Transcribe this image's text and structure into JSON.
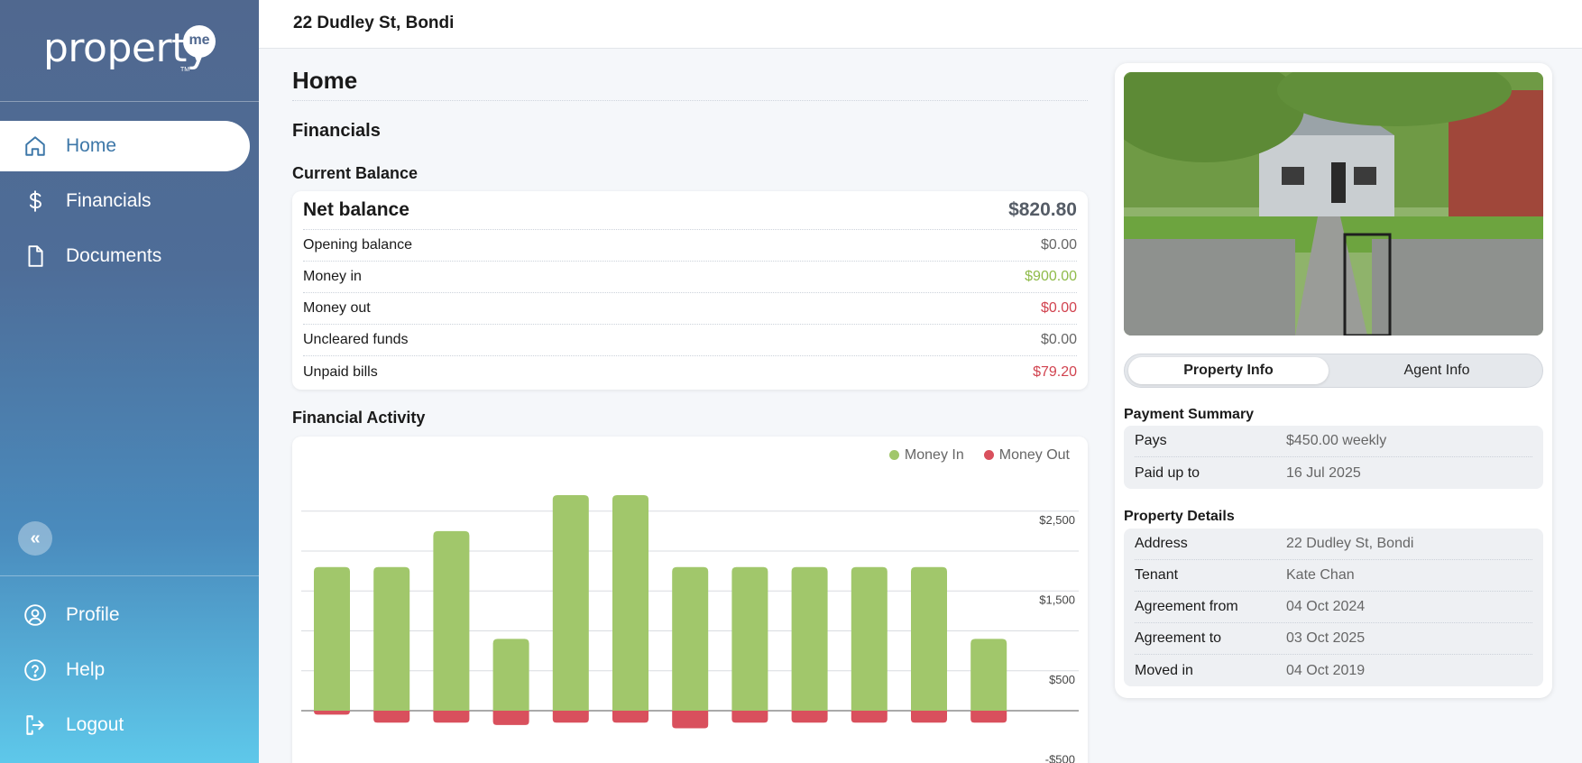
{
  "brand": {
    "logo_text": "property",
    "logo_badge": "me",
    "logo_tm": "TM"
  },
  "topbar": {
    "title": "22 Dudley St, Bondi"
  },
  "sidebar": {
    "items": [
      {
        "label": "Home",
        "icon": "home-icon",
        "active": true
      },
      {
        "label": "Financials",
        "icon": "dollar-icon",
        "active": false
      },
      {
        "label": "Documents",
        "icon": "document-icon",
        "active": false
      }
    ],
    "collapse_icon": "«",
    "bottom_items": [
      {
        "label": "Profile",
        "icon": "profile-icon"
      },
      {
        "label": "Help",
        "icon": "help-icon"
      },
      {
        "label": "Logout",
        "icon": "logout-icon"
      }
    ]
  },
  "main": {
    "page_title": "Home",
    "section_title": "Financials",
    "current_balance_title": "Current Balance",
    "balance": {
      "net_label": "Net balance",
      "net_value": "$820.80",
      "rows": [
        {
          "label": "Opening balance",
          "value": "$0.00",
          "tone": "neutral"
        },
        {
          "label": "Money in",
          "value": "$900.00",
          "tone": "green"
        },
        {
          "label": "Money out",
          "value": "$0.00",
          "tone": "red"
        },
        {
          "label": "Uncleared funds",
          "value": "$0.00",
          "tone": "neutral"
        },
        {
          "label": "Unpaid bills",
          "value": "$79.20",
          "tone": "red"
        }
      ]
    },
    "activity_title": "Financial Activity"
  },
  "chart_data": {
    "type": "bar",
    "series": [
      {
        "name": "Money In",
        "color": "#a1c76b",
        "values": [
          1800,
          1800,
          2250,
          900,
          2700,
          2700,
          1800,
          1800,
          1800,
          1800,
          1800,
          900
        ]
      },
      {
        "name": "Money Out",
        "color": "#d9505d",
        "values": [
          -50,
          -150,
          -150,
          -180,
          -150,
          -150,
          -220,
          -150,
          -150,
          -150,
          -150,
          -150
        ]
      }
    ],
    "y_tick_labels": [
      "$2,500",
      "$1,500",
      "$500",
      "-$500"
    ],
    "y_ticks": [
      2500,
      1500,
      500,
      -500
    ],
    "ylim": [
      -500,
      2750
    ],
    "grid": true,
    "legend": "top-right"
  },
  "right": {
    "tabs": [
      "Property Info",
      "Agent Info"
    ],
    "payment_summary_title": "Payment Summary",
    "payment_summary": [
      {
        "label": "Pays",
        "value": "$450.00 weekly"
      },
      {
        "label": "Paid up to",
        "value": "16 Jul 2025"
      }
    ],
    "property_details_title": "Property Details",
    "property_details": [
      {
        "label": "Address",
        "value": "22 Dudley St, Bondi"
      },
      {
        "label": "Tenant",
        "value": "Kate Chan"
      },
      {
        "label": "Agreement from",
        "value": "04 Oct 2024"
      },
      {
        "label": "Agreement to",
        "value": "03 Oct 2025"
      },
      {
        "label": "Moved in",
        "value": "04 Oct 2019"
      }
    ]
  },
  "colors": {
    "accent": "#3d77a8",
    "green": "#8fbb4a",
    "red": "#d1434f"
  }
}
